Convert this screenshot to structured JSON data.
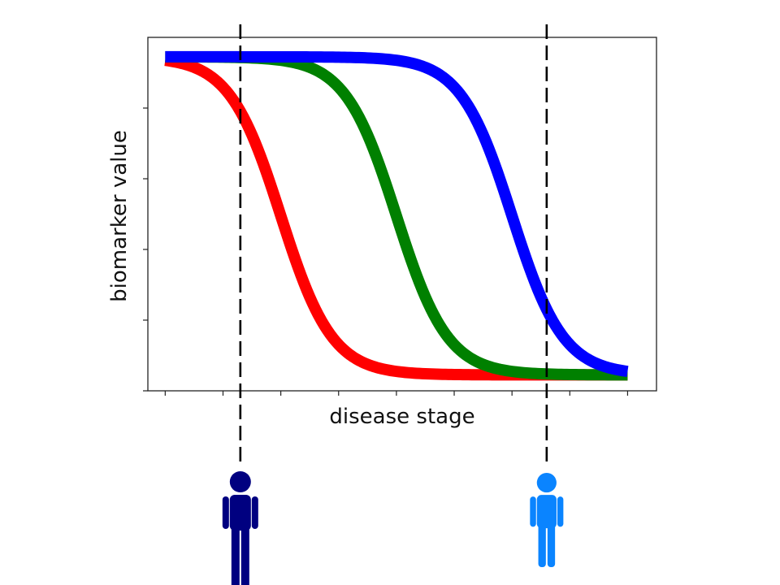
{
  "chart_data": {
    "type": "line",
    "title": "",
    "xlabel": "disease stage",
    "ylabel": "biomarker value",
    "xlim": [
      -0.3,
      8.5
    ],
    "ylim": [
      0,
      1
    ],
    "grid": false,
    "x_ticks": [
      0,
      1,
      2,
      3,
      4,
      5,
      6,
      7,
      8
    ],
    "y_ticks": [
      0,
      0.2,
      0.4,
      0.6,
      0.8
    ],
    "tick_labels_shown": false,
    "series": [
      {
        "color": "#ff0000",
        "kind": "sigmoid-decreasing",
        "midpoint_x": 2.0,
        "y_high": 0.945,
        "y_low": 0.045
      },
      {
        "color": "#008000",
        "kind": "sigmoid-decreasing",
        "midpoint_x": 4.0,
        "y_high": 0.945,
        "y_low": 0.045
      },
      {
        "color": "#0000ff",
        "kind": "sigmoid-decreasing",
        "midpoint_x": 6.0,
        "y_high": 0.945,
        "y_low": 0.045
      }
    ],
    "markers": [
      {
        "label_icon": "person-icon",
        "x": 1.3,
        "color": "#000080"
      },
      {
        "label_icon": "person-icon",
        "x": 6.6,
        "color": "#0a84ff"
      }
    ]
  }
}
